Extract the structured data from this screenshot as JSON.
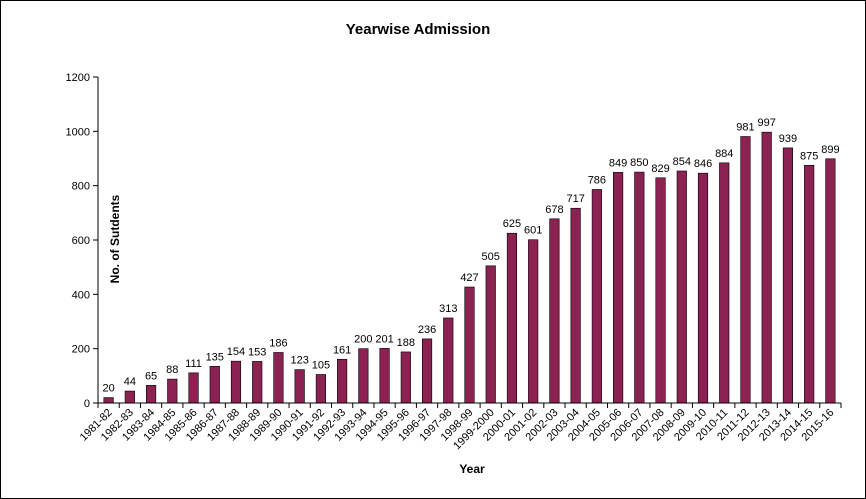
{
  "chart_data": {
    "type": "bar",
    "title": "Yearwise Admission",
    "xlabel": "Year",
    "ylabel": "No. of Sutdents",
    "ylim": [
      0,
      1200
    ],
    "yticks": [
      0,
      200,
      400,
      600,
      800,
      1000,
      1200
    ],
    "grid": false,
    "legend": "none",
    "bar_color": "#8B2252",
    "categories": [
      "1981-82",
      "1982-83",
      "1983-84",
      "1984-85",
      "1985-86",
      "1986-87",
      "1987-88",
      "1988-89",
      "1989-90",
      "1990-91",
      "1991-92",
      "1992-93",
      "1993-94",
      "1994-95",
      "1995-96",
      "1996-97",
      "1997-98",
      "1998-99",
      "1999-2000",
      "2000-01",
      "2001-02",
      "2002-03",
      "2003-04",
      "2004-05",
      "2005-06",
      "2006-07",
      "2007-08",
      "2008-09",
      "2009-10",
      "2010-11",
      "2011-12",
      "2012-13",
      "2013-14",
      "2014-15",
      "2015-16"
    ],
    "values": [
      20,
      44,
      65,
      88,
      111,
      135,
      154,
      153,
      186,
      123,
      105,
      161,
      200,
      201,
      188,
      236,
      313,
      427,
      505,
      625,
      601,
      678,
      717,
      786,
      849,
      850,
      829,
      854,
      846,
      884,
      981,
      997,
      939,
      875,
      899
    ]
  }
}
